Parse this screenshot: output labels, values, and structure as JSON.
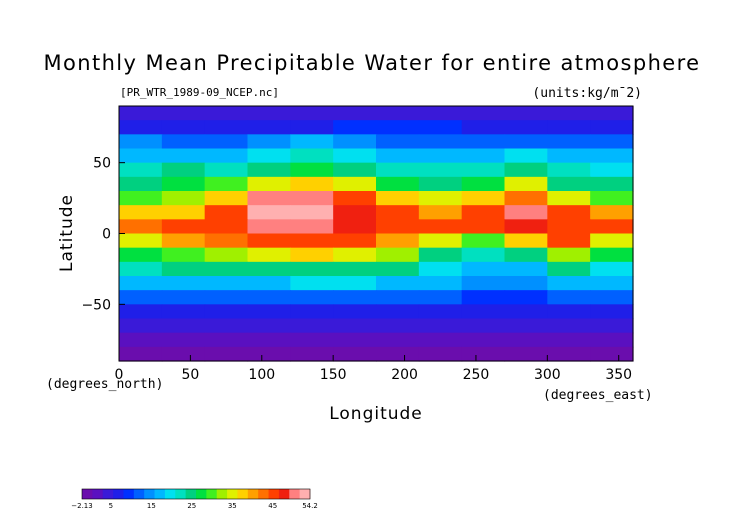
{
  "chart_data": {
    "type": "heatmap",
    "title": "Monthly Mean Precipitable Water for entire atmosphere",
    "source_label": "[PR_WTR_1989-09_NCEP.nc]",
    "units_label": "(units:kg/m¯2)",
    "xlabel": "Longitude",
    "ylabel": "Latitude",
    "x_unit_label": "(degrees_east)",
    "y_unit_label": "(degrees_north)",
    "xlim": [
      0,
      360
    ],
    "ylim": [
      -90,
      90
    ],
    "x_ticks": [
      "0",
      "50",
      "100",
      "150",
      "200",
      "250",
      "300",
      "350"
    ],
    "x_tick_values": [
      0,
      50,
      100,
      150,
      200,
      250,
      300,
      350
    ],
    "y_ticks": [
      "50",
      "0",
      "−50"
    ],
    "y_tick_values": [
      50,
      0,
      -50
    ],
    "colorbar": {
      "min": -2.13,
      "max": 54.2,
      "tick_labels": [
        "−2.13",
        "5",
        "15",
        "25",
        "35",
        "45",
        "54.2"
      ],
      "tick_values": [
        -2.13,
        5,
        15,
        25,
        35,
        45,
        54.2
      ],
      "colors": [
        "#6a0dad",
        "#5a10c0",
        "#3a1ad8",
        "#1f1fe8",
        "#0030ff",
        "#0060ff",
        "#0090ff",
        "#00b8ff",
        "#00e0f0",
        "#00e0c0",
        "#00d080",
        "#00e040",
        "#40f020",
        "#a0f000",
        "#e0f000",
        "#ffd000",
        "#ffa000",
        "#ff7000",
        "#ff4000",
        "#f02010",
        "#ff8080",
        "#ffb0b0"
      ]
    },
    "field": {
      "lat": [
        85,
        75,
        65,
        55,
        45,
        35,
        25,
        15,
        5,
        -5,
        -15,
        -25,
        -35,
        -45,
        -55,
        -65,
        -75,
        -85
      ],
      "lon": [
        0,
        30,
        60,
        90,
        120,
        150,
        180,
        210,
        240,
        270,
        300,
        330
      ],
      "values": [
        [
          4,
          4,
          3,
          3,
          4,
          5,
          5,
          5,
          4,
          3,
          3,
          4
        ],
        [
          8,
          8,
          7,
          7,
          8,
          9,
          9,
          9,
          8,
          7,
          7,
          8
        ],
        [
          14,
          13,
          12,
          14,
          16,
          14,
          13,
          12,
          12,
          13,
          12,
          13
        ],
        [
          18,
          17,
          16,
          20,
          22,
          20,
          18,
          17,
          17,
          19,
          18,
          17
        ],
        [
          22,
          24,
          22,
          26,
          28,
          26,
          22,
          21,
          21,
          26,
          22,
          20
        ],
        [
          25,
          28,
          30,
          36,
          38,
          34,
          28,
          26,
          28,
          34,
          26,
          24
        ],
        [
          30,
          32,
          38,
          50,
          50,
          44,
          38,
          34,
          38,
          42,
          36,
          30
        ],
        [
          38,
          38,
          44,
          52,
          52,
          48,
          44,
          40,
          44,
          50,
          46,
          40
        ],
        [
          42,
          44,
          46,
          50,
          50,
          48,
          46,
          44,
          46,
          48,
          46,
          44
        ],
        [
          36,
          40,
          42,
          44,
          46,
          44,
          40,
          34,
          30,
          38,
          44,
          36
        ],
        [
          28,
          30,
          32,
          34,
          38,
          36,
          32,
          26,
          22,
          24,
          32,
          28
        ],
        [
          22,
          24,
          24,
          24,
          26,
          26,
          24,
          20,
          18,
          18,
          24,
          20
        ],
        [
          16,
          18,
          16,
          18,
          20,
          20,
          18,
          16,
          14,
          14,
          16,
          16
        ],
        [
          12,
          12,
          12,
          12,
          12,
          12,
          12,
          11,
          10,
          10,
          11,
          11
        ],
        [
          8,
          8,
          8,
          8,
          8,
          8,
          8,
          7,
          7,
          6,
          7,
          8
        ],
        [
          5,
          5,
          5,
          5,
          5,
          5,
          5,
          5,
          4,
          4,
          4,
          5
        ],
        [
          2,
          2,
          2,
          2,
          2,
          1,
          1,
          1,
          1,
          1,
          1,
          2
        ],
        [
          0,
          0,
          0,
          0,
          0,
          0,
          0,
          0,
          0,
          0,
          0,
          0
        ]
      ]
    }
  }
}
